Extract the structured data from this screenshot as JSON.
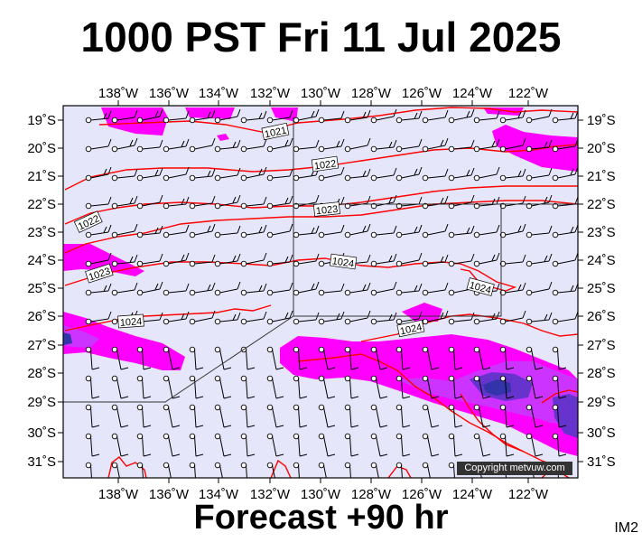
{
  "title": "1000 PST Fri 11 Jul 2025",
  "footer": "Forecast +90 hr",
  "corner_label": "IM2",
  "copyright": "Copyright metvuw.com",
  "lon_labels": [
    "138˚W",
    "136˚W",
    "134˚W",
    "132˚W",
    "130˚W",
    "128˚W",
    "126˚W",
    "124˚W",
    "122˚W"
  ],
  "lat_labels": [
    "19˚S",
    "20˚S",
    "21˚S",
    "22˚S",
    "23˚S",
    "24˚S",
    "25˚S",
    "26˚S",
    "27˚S",
    "28˚S",
    "29˚S",
    "30˚S",
    "31˚S"
  ],
  "isobar_labels": [
    "1021",
    "1022",
    "1023",
    "1022",
    "1023",
    "1024",
    "1024",
    "1024",
    "1024"
  ],
  "colors": {
    "background": "#e6e6fa",
    "isobar": "#ff0000",
    "rain_light": "#ff00ff",
    "rain_medium": "#cc33ff",
    "rain_heavy": "#6633cc",
    "rain_heaviest": "#3333aa",
    "frame": "#000000"
  }
}
